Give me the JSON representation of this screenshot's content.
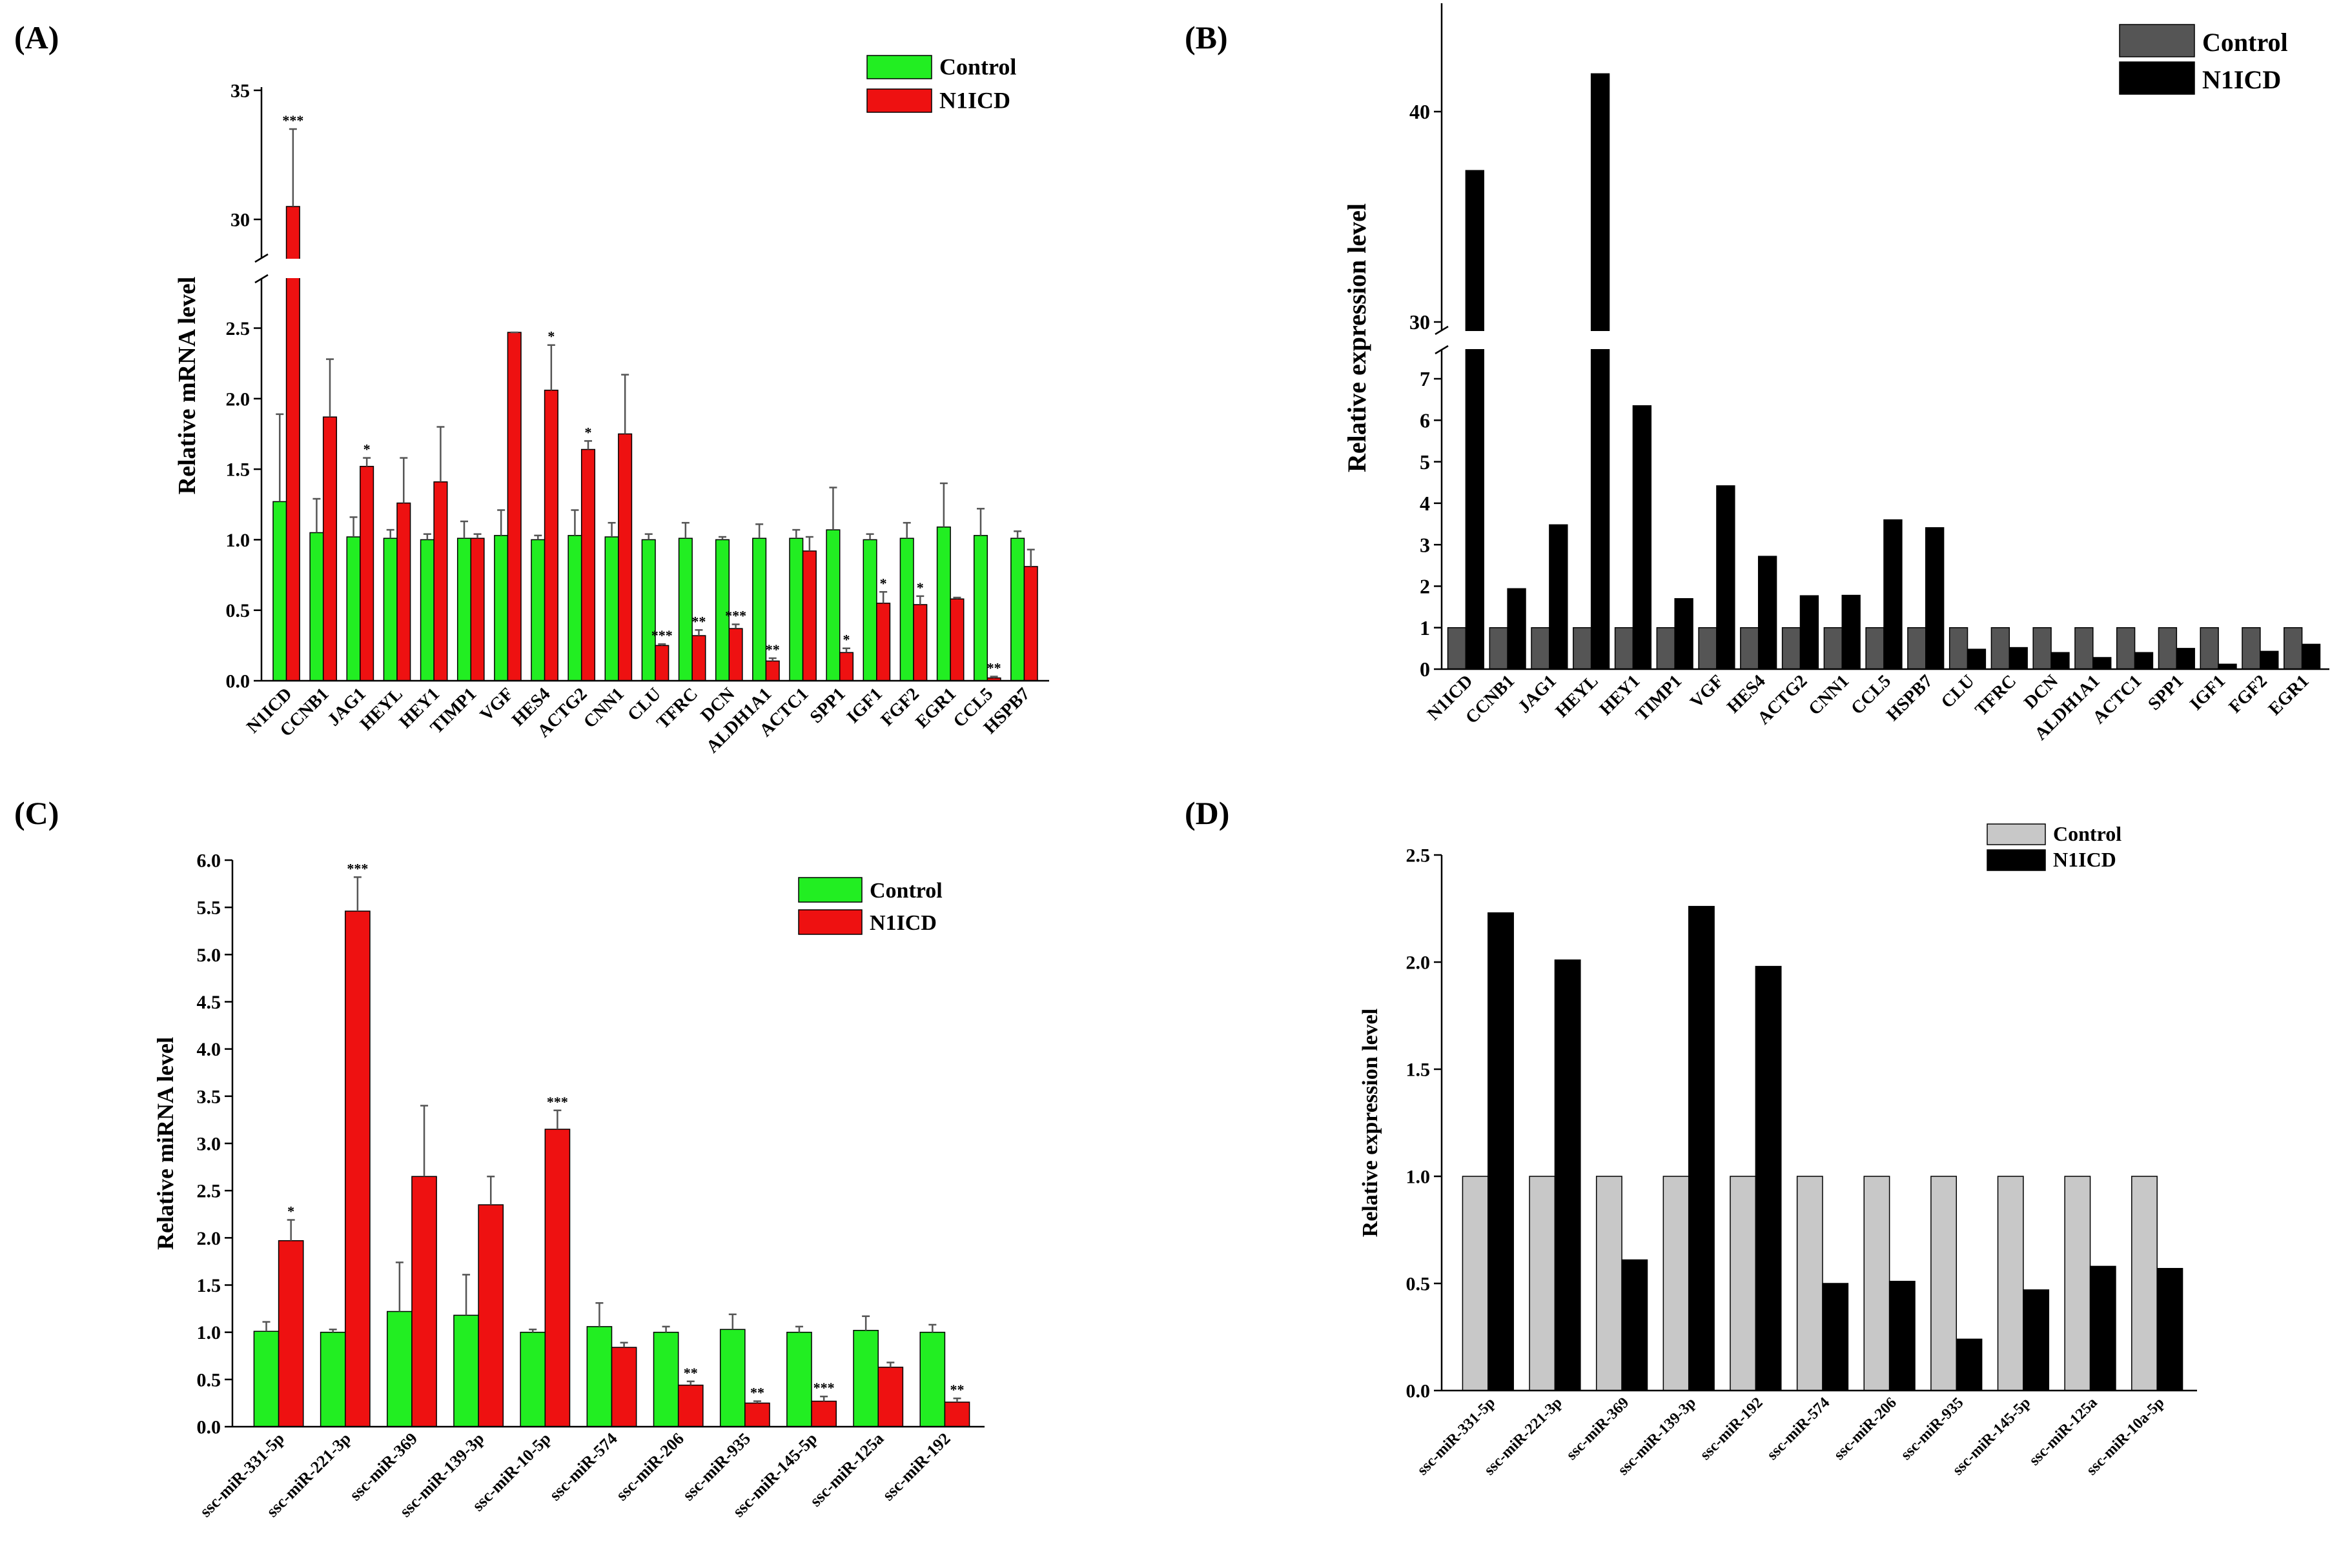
{
  "chart_data": [
    {
      "panel": "(A)",
      "type": "bar",
      "ylabel": "Relative mRNA level",
      "categories": [
        "N1ICD",
        "CCNB1",
        "JAG1",
        "HEYL",
        "HEY1",
        "TIMP1",
        "VGF",
        "HES4",
        "ACTG2",
        "CNN1",
        "CLU",
        "TFRC",
        "DCN",
        "ALDH1A1",
        "ACTC1",
        "SPP1",
        "IGF1",
        "FGF2",
        "EGR1",
        "CCL5",
        "HSPB7"
      ],
      "series": [
        {
          "name": "Control",
          "color": "#22ee22",
          "values": [
            1.27,
            1.05,
            1.02,
            1.01,
            1.0,
            1.01,
            1.03,
            1.0,
            1.03,
            1.02,
            1.0,
            1.01,
            1.0,
            1.01,
            1.01,
            1.07,
            1.0,
            1.01,
            1.09,
            1.03,
            1.01
          ],
          "errors": [
            0.62,
            0.24,
            0.14,
            0.06,
            0.04,
            0.12,
            0.18,
            0.03,
            0.18,
            0.1,
            0.04,
            0.11,
            0.02,
            0.1,
            0.06,
            0.3,
            0.04,
            0.11,
            0.31,
            0.19,
            0.05
          ]
        },
        {
          "name": "N1ICD",
          "color": "#ee1111",
          "values": [
            30.5,
            1.87,
            1.52,
            1.26,
            1.41,
            1.01,
            2.47,
            2.06,
            1.64,
            1.75,
            0.25,
            0.32,
            0.37,
            0.14,
            0.92,
            0.2,
            0.55,
            0.54,
            0.58,
            0.02,
            0.81
          ],
          "errors": [
            3.0,
            0.41,
            0.06,
            0.32,
            0.39,
            0.03,
            0.0,
            0.32,
            0.06,
            0.42,
            0.01,
            0.04,
            0.03,
            0.02,
            0.1,
            0.03,
            0.08,
            0.06,
            0.01,
            0.01,
            0.12
          ]
        }
      ],
      "significance": [
        "***",
        "",
        "*",
        "",
        "",
        "",
        "",
        "*",
        "*",
        "",
        "***",
        "**",
        "***",
        "**",
        "",
        "*",
        "*",
        "*",
        "",
        "**",
        ""
      ],
      "yticks_lower": [
        "0.0",
        "0.5",
        "1.0",
        "1.5",
        "2.0",
        "2.5"
      ],
      "yticks_upper": [
        "30",
        "35"
      ],
      "ylim_lower": [
        0,
        2.85
      ],
      "ylim_upper": [
        28.5,
        35
      ],
      "legend_position": "top-right"
    },
    {
      "panel": "(B)",
      "type": "bar",
      "ylabel": "Relative expression level",
      "categories": [
        "N1ICD",
        "CCNB1",
        "JAG1",
        "HEYL",
        "HEY1",
        "TIMP1",
        "VGF",
        "HES4",
        "ACTG2",
        "CNN1",
        "CCL5",
        "HSPB7",
        "CLU",
        "TFRC",
        "DCN",
        "ALDH1A1",
        "ACTC1",
        "SPP1",
        "IGF1",
        "FGF2",
        "EGR1"
      ],
      "series": [
        {
          "name": "Control",
          "color": "#555555",
          "values": [
            1,
            1,
            1,
            1,
            1,
            1,
            1,
            1,
            1,
            1,
            1,
            1,
            1,
            1,
            1,
            1,
            1,
            1,
            1,
            1,
            1
          ]
        },
        {
          "name": "N1ICD",
          "color": "#000000",
          "values": [
            37.2,
            1.94,
            3.48,
            41.8,
            6.35,
            1.7,
            4.42,
            2.72,
            1.77,
            1.78,
            3.6,
            3.41,
            0.48,
            0.52,
            0.4,
            0.28,
            0.4,
            0.5,
            0.12,
            0.43,
            0.6
          ]
        }
      ],
      "yticks_lower": [
        "0",
        "1",
        "2",
        "3",
        "4",
        "5",
        "6",
        "7"
      ],
      "yticks_upper": [
        "30",
        "40"
      ],
      "ylim_lower": [
        0,
        7.7
      ],
      "ylim_upper": [
        29.6,
        45
      ],
      "legend_position": "top-right"
    },
    {
      "panel": "(C)",
      "type": "bar",
      "ylabel": "Relative miRNA level",
      "categories": [
        "ssc-miR-331-5p",
        "ssc-miR-221-3p",
        "ssc-miR-369",
        "ssc-miR-139-3p",
        "ssc-miR-10-5p",
        "ssc-miR-574",
        "ssc-miR-206",
        "ssc-miR-935",
        "ssc-miR-145-5p",
        "ssc-miR-125a",
        "ssc-miR-192"
      ],
      "series": [
        {
          "name": "Control",
          "color": "#22ee22",
          "values": [
            1.01,
            1.0,
            1.22,
            1.18,
            1.0,
            1.06,
            1.0,
            1.03,
            1.0,
            1.02,
            1.0
          ],
          "errors": [
            0.1,
            0.03,
            0.52,
            0.43,
            0.03,
            0.25,
            0.06,
            0.16,
            0.06,
            0.15,
            0.08
          ]
        },
        {
          "name": "N1ICD",
          "color": "#ee1111",
          "values": [
            1.97,
            5.46,
            2.65,
            2.35,
            3.15,
            0.84,
            0.44,
            0.25,
            0.27,
            0.63,
            0.26
          ],
          "errors": [
            0.22,
            0.36,
            0.75,
            0.3,
            0.2,
            0.05,
            0.04,
            0.02,
            0.05,
            0.05,
            0.04
          ]
        }
      ],
      "significance": [
        "*",
        "***",
        "",
        "",
        "***",
        "",
        "**",
        "**",
        "***",
        "",
        "**"
      ],
      "yticks": [
        "0.0",
        "0.5",
        "1.0",
        "1.5",
        "2.0",
        "2.5",
        "3.0",
        "3.5",
        "4.0",
        "4.5",
        "5.0",
        "5.5",
        "6.0"
      ],
      "ylim": [
        0,
        6.0
      ],
      "legend_position": "top-right"
    },
    {
      "panel": "(D)",
      "type": "bar",
      "ylabel": "Relative expression level",
      "categories": [
        "ssc-miR-331-5p",
        "ssc-miR-221-3p",
        "ssc-miR-369",
        "ssc-miR-139-3p",
        "ssc-miR-192",
        "ssc-miR-574",
        "ssc-miR-206",
        "ssc-miR-935",
        "ssc-miR-145-5p",
        "ssc-miR-125a",
        "ssc-miR-10a-5p"
      ],
      "series": [
        {
          "name": "Control",
          "color": "#c8c8c8",
          "values": [
            1,
            1,
            1,
            1,
            1,
            1,
            1,
            1,
            1,
            1,
            1
          ]
        },
        {
          "name": "N1ICD",
          "color": "#000000",
          "values": [
            2.23,
            2.01,
            0.61,
            2.26,
            1.98,
            0.5,
            0.51,
            0.24,
            0.47,
            0.58,
            0.57
          ]
        }
      ],
      "yticks": [
        "0.0",
        "0.5",
        "1.0",
        "1.5",
        "2.0",
        "2.5"
      ],
      "ylim": [
        0,
        2.5
      ],
      "legend_position": "top-right"
    }
  ]
}
